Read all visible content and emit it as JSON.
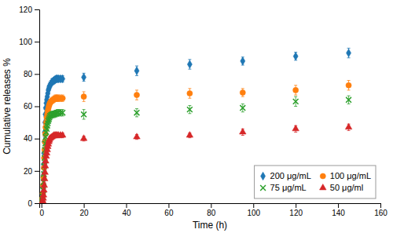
{
  "chart_data": {
    "type": "scatter",
    "xlabel": "Time (h)",
    "ylabel": "Cumulative releases %",
    "xlim": [
      -1,
      160
    ],
    "ylim": [
      0,
      120
    ],
    "xticks": [
      0,
      20,
      40,
      60,
      80,
      100,
      120,
      140,
      160
    ],
    "yticks": [
      0,
      20,
      40,
      60,
      80,
      100,
      120
    ],
    "grid": false,
    "legend": "lower-right",
    "series": [
      {
        "name": "200 μg/mL",
        "marker": "diamond",
        "x": [
          0.1,
          0.2,
          0.33,
          0.5,
          0.67,
          0.83,
          1.0,
          1.17,
          1.33,
          1.5,
          1.67,
          1.83,
          2.0,
          2.25,
          2.5,
          2.75,
          3.0,
          3.25,
          3.5,
          3.75,
          4.0,
          4.5,
          5.0,
          5.5,
          6.0,
          6.5,
          7.0,
          7.5,
          8.0,
          9.0,
          10.0,
          20,
          45,
          70,
          95,
          120,
          145
        ],
        "values": [
          0,
          0.5,
          2,
          5,
          10,
          17,
          24,
          31,
          38,
          44,
          50,
          55,
          59,
          62,
          64,
          66,
          68,
          70,
          71,
          72,
          73,
          74,
          75,
          75.5,
          76,
          76.5,
          77,
          77,
          77,
          77,
          77,
          78,
          82,
          86,
          88,
          91,
          93
        ],
        "errors": [
          0,
          0.3,
          0.8,
          1.5,
          2,
          2.5,
          3,
          3,
          3.5,
          3.5,
          3.5,
          3,
          3,
          3,
          2.5,
          2.5,
          2.5,
          2.5,
          2,
          2,
          2,
          2,
          2,
          2,
          2,
          2,
          2,
          2,
          2,
          2,
          2,
          2.5,
          3,
          3,
          2.5,
          2.5,
          3
        ]
      },
      {
        "name": "100 μg/mL",
        "marker": "circle",
        "x": [
          0.1,
          0.2,
          0.33,
          0.5,
          0.67,
          0.83,
          1.0,
          1.17,
          1.33,
          1.5,
          1.67,
          1.83,
          2.0,
          2.25,
          2.5,
          2.75,
          3.0,
          3.25,
          3.5,
          3.75,
          4.0,
          4.5,
          5.0,
          5.5,
          6.0,
          6.5,
          7.0,
          7.5,
          8.0,
          9.0,
          10.0,
          20,
          45,
          70,
          95,
          120,
          145
        ],
        "values": [
          0,
          0.3,
          1,
          3,
          6,
          11,
          16,
          22,
          28,
          33,
          38,
          43,
          47,
          50,
          53,
          55,
          57,
          58.5,
          60,
          61,
          62,
          63,
          63.5,
          64,
          64.5,
          65,
          65,
          65,
          65,
          65,
          65,
          66,
          67,
          68,
          68.5,
          70,
          73
        ],
        "errors": [
          0,
          0.3,
          0.5,
          1,
          1.5,
          2,
          2.5,
          3,
          3,
          3,
          3,
          3,
          2.5,
          2.5,
          2.5,
          2.5,
          2.5,
          2.5,
          2,
          2,
          2,
          2,
          2,
          2,
          2,
          2,
          2,
          2,
          2,
          2,
          2,
          3,
          3,
          3,
          2.5,
          3,
          3
        ]
      },
      {
        "name": "75 μg/mL",
        "marker": "x",
        "x": [
          0.1,
          0.2,
          0.33,
          0.5,
          0.67,
          0.83,
          1.0,
          1.17,
          1.33,
          1.5,
          1.67,
          1.83,
          2.0,
          2.25,
          2.5,
          2.75,
          3.0,
          3.25,
          3.5,
          3.75,
          4.0,
          4.5,
          5.0,
          5.5,
          6.0,
          6.5,
          7.0,
          7.5,
          8.0,
          9.0,
          10.0,
          20,
          45,
          70,
          95,
          120,
          145
        ],
        "values": [
          0,
          0.2,
          0.8,
          2,
          4,
          8,
          13,
          18,
          23,
          28,
          33,
          37,
          41,
          44,
          46,
          48,
          49.5,
          51,
          52,
          53,
          54,
          54.5,
          55,
          55,
          55,
          55.5,
          55.5,
          56,
          56,
          56,
          56,
          55,
          56,
          58,
          59,
          63,
          64
        ],
        "errors": [
          0,
          0.2,
          0.5,
          1,
          1.5,
          2,
          2,
          2.5,
          2.5,
          3,
          3,
          2.5,
          2.5,
          2.5,
          2.5,
          2,
          2,
          2,
          2,
          2,
          2,
          2,
          2,
          2,
          2,
          2,
          2,
          2,
          2,
          2,
          2,
          3,
          2.5,
          2.5,
          2.5,
          3,
          2.5
        ]
      },
      {
        "name": "50 μg/ml",
        "marker": "triangle",
        "x": [
          0.1,
          0.2,
          0.33,
          0.5,
          0.67,
          0.83,
          1.0,
          1.17,
          1.33,
          1.5,
          1.67,
          1.83,
          2.0,
          2.25,
          2.5,
          2.75,
          3.0,
          3.25,
          3.5,
          3.75,
          4.0,
          4.5,
          5.0,
          5.5,
          6.0,
          6.5,
          7.0,
          7.5,
          8.0,
          9.0,
          10.0,
          20,
          45,
          70,
          95,
          120,
          145
        ],
        "values": [
          0,
          0.1,
          0.3,
          0.8,
          1.5,
          3,
          5,
          8,
          11,
          15,
          19,
          23,
          26,
          29,
          31,
          33,
          35,
          36.5,
          38,
          39,
          40,
          40.5,
          41,
          41.5,
          42,
          42,
          42,
          42,
          42,
          42,
          42,
          40,
          41,
          42,
          44,
          46,
          47
        ],
        "errors": [
          0,
          0.1,
          0.3,
          0.5,
          1,
          1.5,
          1.5,
          2,
          2,
          2.5,
          2.5,
          2.5,
          2,
          2,
          2,
          2,
          2,
          1.5,
          1.5,
          1.5,
          1.5,
          1.5,
          1.5,
          1.5,
          1.5,
          1.5,
          1.5,
          1.5,
          1.5,
          1.5,
          1.5,
          1.5,
          1.5,
          1.5,
          2,
          2,
          2
        ]
      }
    ]
  }
}
